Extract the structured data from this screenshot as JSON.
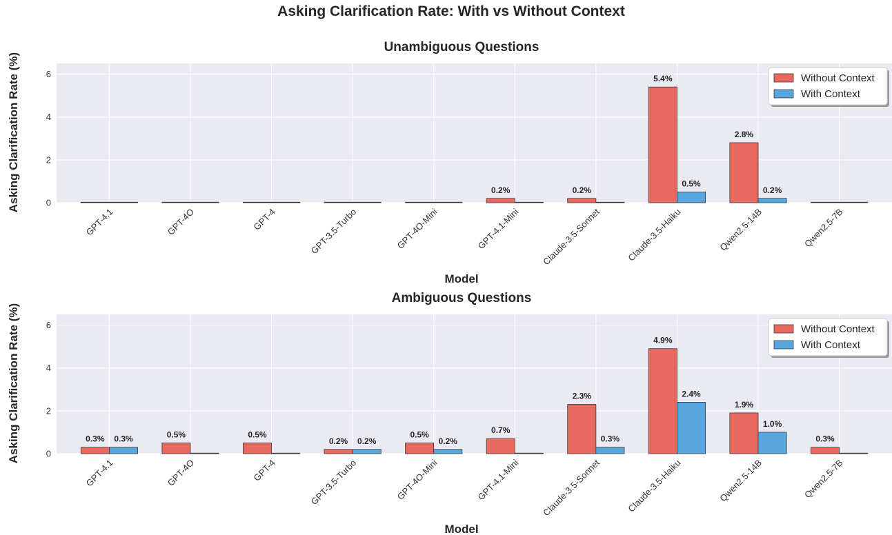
{
  "chart_data": {
    "type": "bar",
    "title": "Asking Clarification Rate: With vs Without Context",
    "colors": {
      "Without Context": "#e8695f",
      "With Context": "#58a6df",
      "plot_bg": "#eaeaf2",
      "grid": "#ffffff",
      "bar_edge": "#3a3a3a"
    },
    "legend_position": "top-right",
    "grid": true,
    "value_label_format": "{v}%",
    "panels": [
      {
        "title": "Unambiguous Questions",
        "xlabel": "Model",
        "ylabel": "Asking Clarification Rate (%)",
        "ylim": [
          0,
          6.5
        ],
        "yticks": [
          0,
          2,
          4,
          6
        ],
        "categories": [
          "GPT-4.1",
          "GPT-4O",
          "GPT-4",
          "GPT-3.5-Turbo",
          "GPT-4O-Mini",
          "GPT-4.1-Mini",
          "Claude-3.5-Sonnet",
          "Claude-3.5-Haiku",
          "Qwen2.5-14B",
          "Qwen2.5-7B"
        ],
        "series": [
          {
            "name": "Without Context",
            "values": [
              0,
              0,
              0,
              0,
              0,
              0.2,
              0.2,
              5.4,
              2.8,
              0
            ]
          },
          {
            "name": "With Context",
            "values": [
              0,
              0,
              0,
              0,
              0,
              0,
              0,
              0.5,
              0.2,
              0
            ]
          }
        ]
      },
      {
        "title": "Ambiguous Questions",
        "xlabel": "Model",
        "ylabel": "Asking Clarification Rate (%)",
        "ylim": [
          0,
          6.5
        ],
        "yticks": [
          0,
          2,
          4,
          6
        ],
        "categories": [
          "GPT-4.1",
          "GPT-4O",
          "GPT-4",
          "GPT-3.5-Turbo",
          "GPT-4O-Mini",
          "GPT-4.1-Mini",
          "Claude-3.5-Sonnet",
          "Claude-3.5-Haiku",
          "Qwen2.5-14B",
          "Qwen2.5-7B"
        ],
        "series": [
          {
            "name": "Without Context",
            "values": [
              0.3,
              0.5,
              0.5,
              0.2,
              0.5,
              0.7,
              2.3,
              4.9,
              1.9,
              0.3
            ]
          },
          {
            "name": "With Context",
            "values": [
              0.3,
              0,
              0,
              0.2,
              0.2,
              0,
              0.3,
              2.4,
              1.0,
              0
            ]
          }
        ]
      }
    ]
  }
}
